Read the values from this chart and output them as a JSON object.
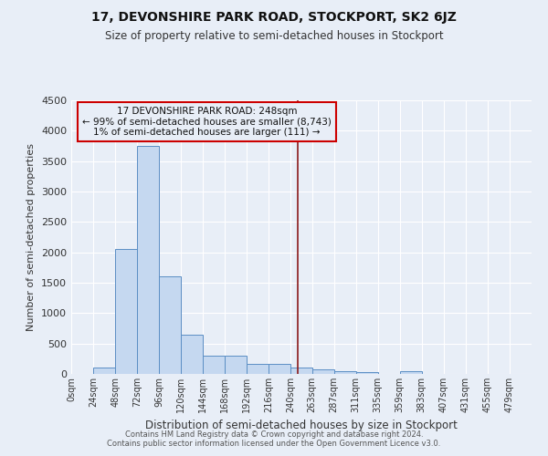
{
  "title": "17, DEVONSHIRE PARK ROAD, STOCKPORT, SK2 6JZ",
  "subtitle": "Size of property relative to semi-detached houses in Stockport",
  "xlabel": "Distribution of semi-detached houses by size in Stockport",
  "ylabel": "Number of semi-detached properties",
  "bin_edges": [
    0,
    24,
    48,
    72,
    96,
    120,
    144,
    168,
    192,
    216,
    240,
    263,
    287,
    311,
    335,
    359,
    383,
    407,
    431,
    455,
    479,
    503
  ],
  "bar_heights": [
    0,
    100,
    2050,
    3750,
    1600,
    640,
    300,
    300,
    160,
    160,
    100,
    70,
    50,
    35,
    0,
    50,
    0,
    0,
    0,
    0,
    0
  ],
  "bar_color": "#c5d8f0",
  "bar_edgecolor": "#5b8ec4",
  "vline_x": 248,
  "vline_color": "#8b1a1a",
  "ylim": [
    0,
    4500
  ],
  "annotation_title": "17 DEVONSHIRE PARK ROAD: 248sqm",
  "annotation_line1": "← 99% of semi-detached houses are smaller (8,743)",
  "annotation_line2": "1% of semi-detached houses are larger (111) →",
  "annotation_box_edgecolor": "#cc0000",
  "background_color": "#e8eef7",
  "grid_color": "#ffffff",
  "footer1": "Contains HM Land Registry data © Crown copyright and database right 2024.",
  "footer2": "Contains public sector information licensed under the Open Government Licence v3.0.",
  "tick_labels": [
    "0sqm",
    "24sqm",
    "48sqm",
    "72sqm",
    "96sqm",
    "120sqm",
    "144sqm",
    "168sqm",
    "192sqm",
    "216sqm",
    "240sqm",
    "263sqm",
    "287sqm",
    "311sqm",
    "335sqm",
    "359sqm",
    "383sqm",
    "407sqm",
    "431sqm",
    "455sqm",
    "479sqm"
  ],
  "yticks": [
    0,
    500,
    1000,
    1500,
    2000,
    2500,
    3000,
    3500,
    4000,
    4500
  ]
}
